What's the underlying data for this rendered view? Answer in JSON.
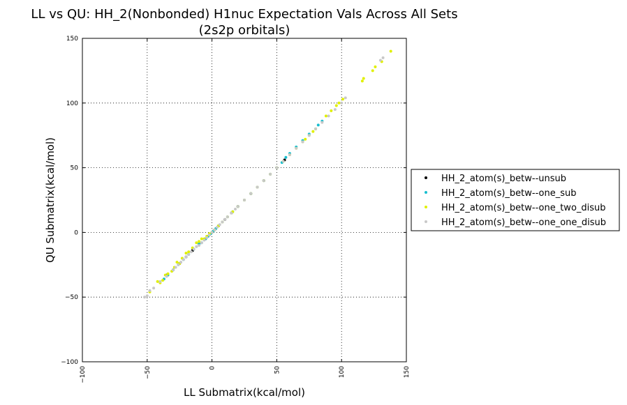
{
  "chart_data": {
    "type": "scatter",
    "title": [
      "LL vs QU: HH_2(Nonbonded) H1nuc Expectation Vals Across All Sets",
      "(2s2p orbitals)"
    ],
    "xlabel": "LL Submatrix(kcal/mol)",
    "ylabel": "QU Submatrix(kcal/mol)",
    "xlim": [
      -100,
      150
    ],
    "ylim": [
      -100,
      150
    ],
    "xticks": [
      -100,
      -50,
      0,
      50,
      100,
      150
    ],
    "yticks": [
      -100,
      -50,
      0,
      50,
      100,
      150
    ],
    "xtick_labels": [
      "−100",
      "−50",
      "0",
      "50",
      "100",
      "150"
    ],
    "ytick_labels": [
      "−100",
      "−50",
      "0",
      "50",
      "100",
      "150"
    ],
    "xtick_rotation": "vertical",
    "grid": true,
    "grid_style": "dotted",
    "legend_position": "outside-right",
    "series": [
      {
        "name": "HH_2_atom(s)_betw--unsub",
        "color": "#000000",
        "x": [
          -35,
          -30,
          -25,
          -20,
          -15,
          -10,
          -5,
          -2,
          0,
          2,
          5,
          10,
          15,
          20,
          30,
          40,
          50,
          56
        ],
        "y": [
          -33,
          -29,
          -24,
          -19,
          -14,
          -9,
          -5,
          -2,
          0,
          2,
          5,
          10,
          15,
          20,
          30,
          40,
          50,
          56
        ]
      },
      {
        "name": "HH_2_atom(s)_betw--one_sub",
        "color": "#17becf",
        "x": [
          -37,
          -34,
          -30,
          -26,
          -22,
          -18,
          -14,
          -10,
          -8,
          -5,
          -3,
          -1,
          1,
          3,
          5,
          8,
          12,
          16,
          20,
          25,
          30,
          35,
          40,
          45,
          50,
          54,
          57,
          60,
          65,
          70,
          75,
          80,
          82,
          85
        ],
        "y": [
          -36,
          -33,
          -29,
          -25,
          -21,
          -17,
          -13,
          -9,
          -8,
          -5,
          -3,
          -1,
          1,
          3,
          5,
          8,
          12,
          16,
          20,
          25,
          30,
          35,
          40,
          45,
          50,
          54,
          58,
          61,
          66,
          71,
          76,
          80,
          83,
          86
        ]
      },
      {
        "name": "HH_2_atom(s)_betw--one_two_disub",
        "color": "#e0f000",
        "x": [
          -48,
          -42,
          -40,
          -38,
          -36,
          -34,
          -31,
          -29,
          -27,
          -25,
          -23,
          -20,
          -18,
          -15,
          -12,
          -10,
          -8,
          -6,
          -4,
          -2,
          0,
          2,
          5,
          8,
          12,
          16,
          20,
          25,
          30,
          35,
          40,
          45,
          50,
          55,
          60,
          65,
          70,
          72,
          75,
          78,
          80,
          88,
          92,
          96,
          98,
          101,
          116,
          117,
          124,
          126,
          131,
          138
        ],
        "y": [
          -46,
          -38,
          -39,
          -37,
          -33,
          -32,
          -30,
          -27,
          -23,
          -24,
          -20,
          -16,
          -15,
          -12,
          -8,
          -7,
          -5,
          -5,
          -3,
          -1,
          0,
          2,
          5,
          8,
          12,
          16,
          20,
          25,
          30,
          35,
          40,
          45,
          50,
          55,
          60,
          65,
          70,
          72,
          75,
          78,
          80,
          90,
          94,
          98,
          100,
          103,
          117,
          119,
          125,
          128,
          132,
          140
        ]
      },
      {
        "name": "HH_2_atom(s)_betw--one_one_disub",
        "color": "#c8c8c8",
        "x": [
          -52,
          -50,
          -48,
          -45,
          -40,
          -35,
          -30,
          -28,
          -26,
          -24,
          -22,
          -20,
          -18,
          -16,
          -14,
          -12,
          -10,
          -8,
          -6,
          -4,
          -2,
          0,
          2,
          4,
          6,
          8,
          10,
          12,
          15,
          18,
          20,
          25,
          30,
          35,
          40,
          45,
          50,
          55,
          60,
          65,
          70,
          75,
          80,
          85,
          90,
          95,
          100,
          103,
          130,
          132
        ],
        "y": [
          -50,
          -49,
          -45,
          -43,
          -38,
          -34,
          -29,
          -27,
          -25,
          -23,
          -21,
          -19,
          -17,
          -15,
          -13,
          -11,
          -10,
          -8,
          -6,
          -4,
          -2,
          0,
          2,
          4,
          6,
          8,
          10,
          12,
          15,
          18,
          20,
          25,
          30,
          35,
          40,
          45,
          50,
          55,
          60,
          65,
          70,
          75,
          80,
          85,
          90,
          95,
          100,
          104,
          133,
          135
        ]
      }
    ]
  }
}
